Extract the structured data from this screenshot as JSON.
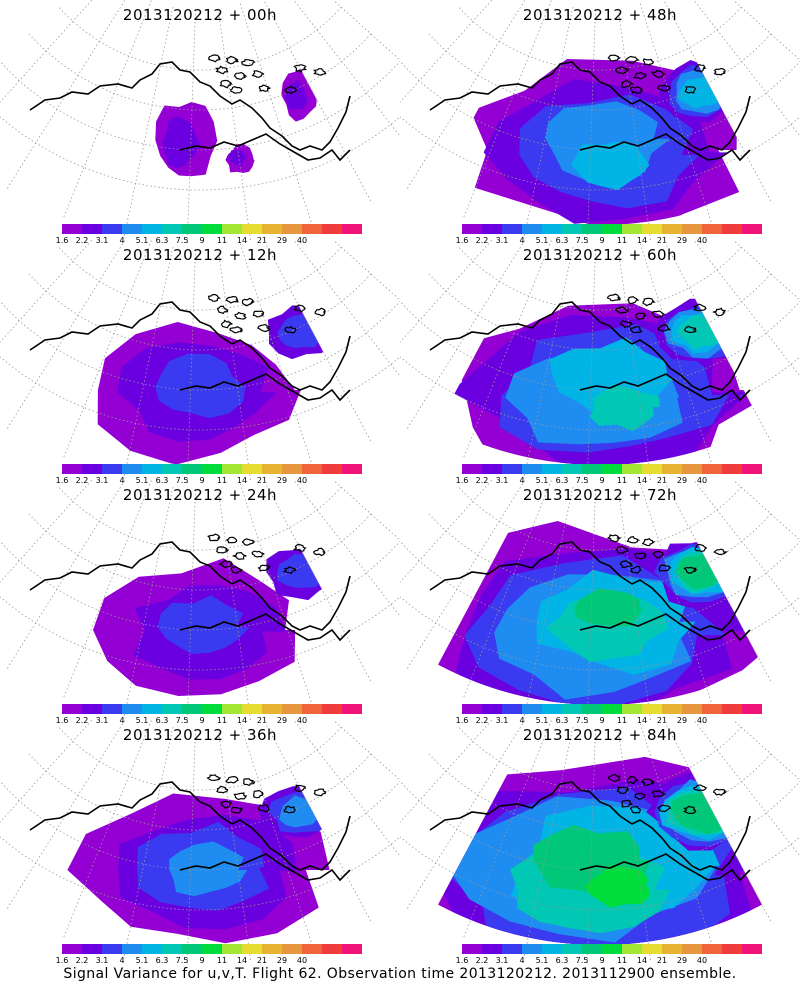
{
  "footer": "Signal Variance for u,v,T. Flight 62. Observation time 2013120212. 2013112900 ensemble.",
  "colorbar": {
    "colors": [
      "#9400d3",
      "#6a00e0",
      "#3a3af0",
      "#1e8cf0",
      "#00b4e6",
      "#00c8b4",
      "#00c878",
      "#00dc3c",
      "#a0e632",
      "#e6dc32",
      "#e6b432",
      "#e6963c",
      "#f0643c",
      "#f03c3c",
      "#f01478"
    ],
    "labels": [
      "1.6",
      "2.2",
      "3.1",
      "4",
      "5.1",
      "6.3",
      "7.5",
      "9",
      "11",
      "14",
      "21",
      "29",
      "40"
    ]
  },
  "panels": [
    {
      "title": "2013120212 + 00h",
      "intensity": 0
    },
    {
      "title": "2013120212 + 48h",
      "intensity": 3
    },
    {
      "title": "2013120212 + 12h",
      "intensity": 1
    },
    {
      "title": "2013120212 + 60h",
      "intensity": 4
    },
    {
      "title": "2013120212 + 24h",
      "intensity": 1
    },
    {
      "title": "2013120212 + 72h",
      "intensity": 5
    },
    {
      "title": "2013120212 + 36h",
      "intensity": 2
    },
    {
      "title": "2013120212 + 84h",
      "intensity": 6
    }
  ]
}
